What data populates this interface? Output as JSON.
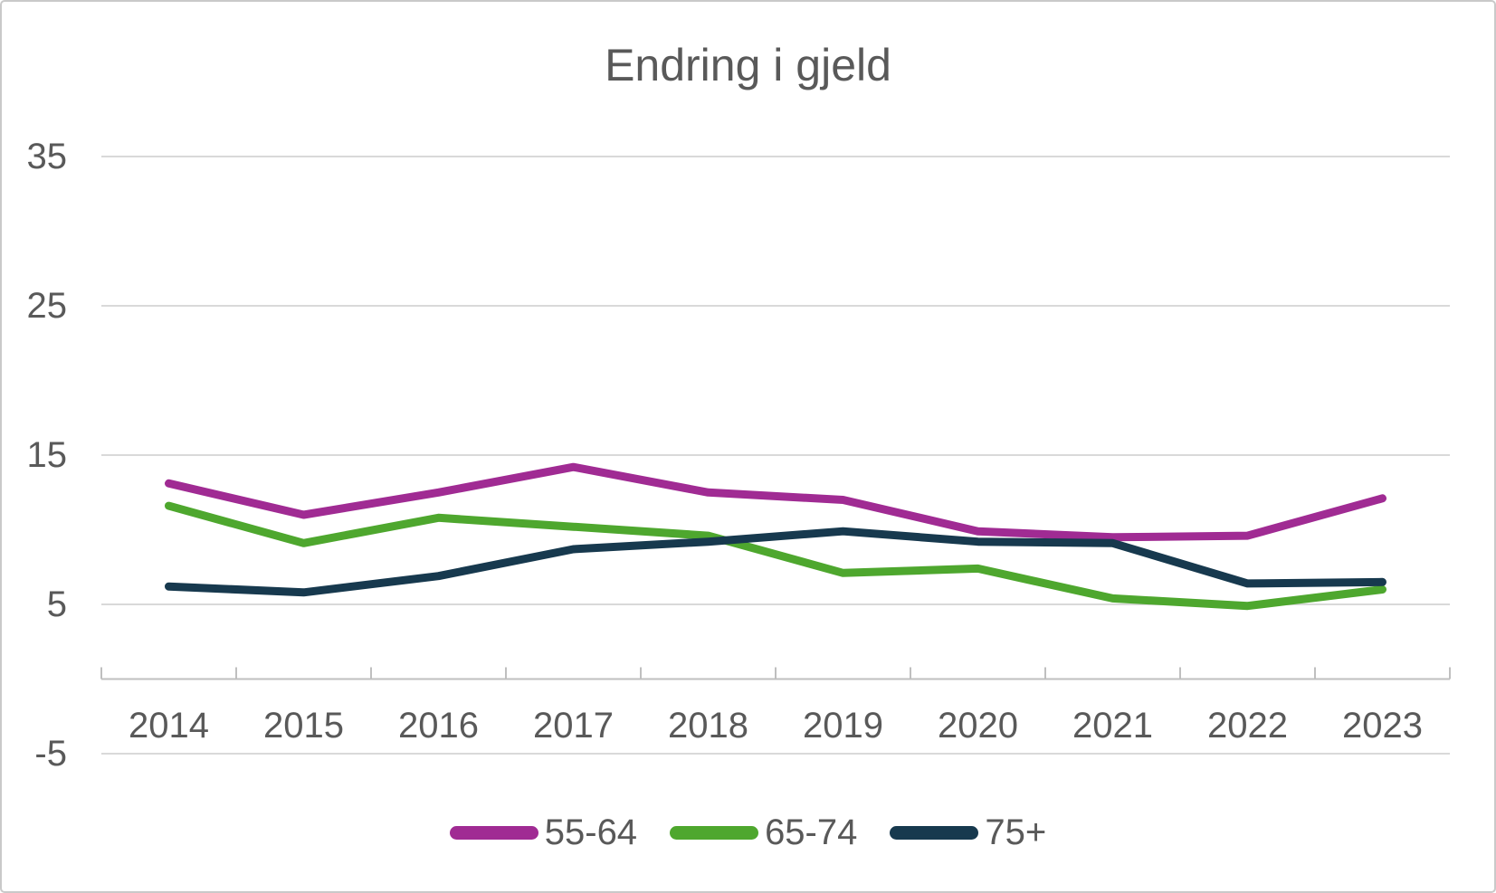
{
  "chart_data": {
    "type": "line",
    "title": "Endring i gjeld",
    "categories": [
      "2014",
      "2015",
      "2016",
      "2017",
      "2018",
      "2019",
      "2020",
      "2021",
      "2022",
      "2023"
    ],
    "series": [
      {
        "name": "55-64",
        "color": "#A02B93",
        "values": [
          13.1,
          11.0,
          12.5,
          14.2,
          12.5,
          12.0,
          9.9,
          9.5,
          9.6,
          12.1
        ]
      },
      {
        "name": "65-74",
        "color": "#4EA72E",
        "values": [
          11.6,
          9.1,
          10.8,
          10.2,
          9.6,
          7.1,
          7.4,
          5.4,
          4.9,
          6.0
        ]
      },
      {
        "name": "75+",
        "color": "#17394E",
        "values": [
          6.2,
          5.8,
          6.9,
          8.7,
          9.2,
          9.9,
          9.2,
          9.1,
          6.4,
          6.5
        ]
      }
    ],
    "xlabel": "",
    "ylabel": "",
    "ylim": [
      -5,
      35
    ],
    "y_major_unit": 10,
    "y_tick_values": [
      35,
      25,
      15,
      5,
      -5
    ],
    "y_tick_labels": [
      "35",
      "25",
      "15",
      "5",
      "-5"
    ],
    "grid": true,
    "legend_position": "bottom",
    "colors": {
      "text": "#595959",
      "gridline": "#D9D9D9",
      "axis_line": "#BFBFBF",
      "background": "#FFFFFF",
      "border": "#C9C9C9"
    }
  }
}
